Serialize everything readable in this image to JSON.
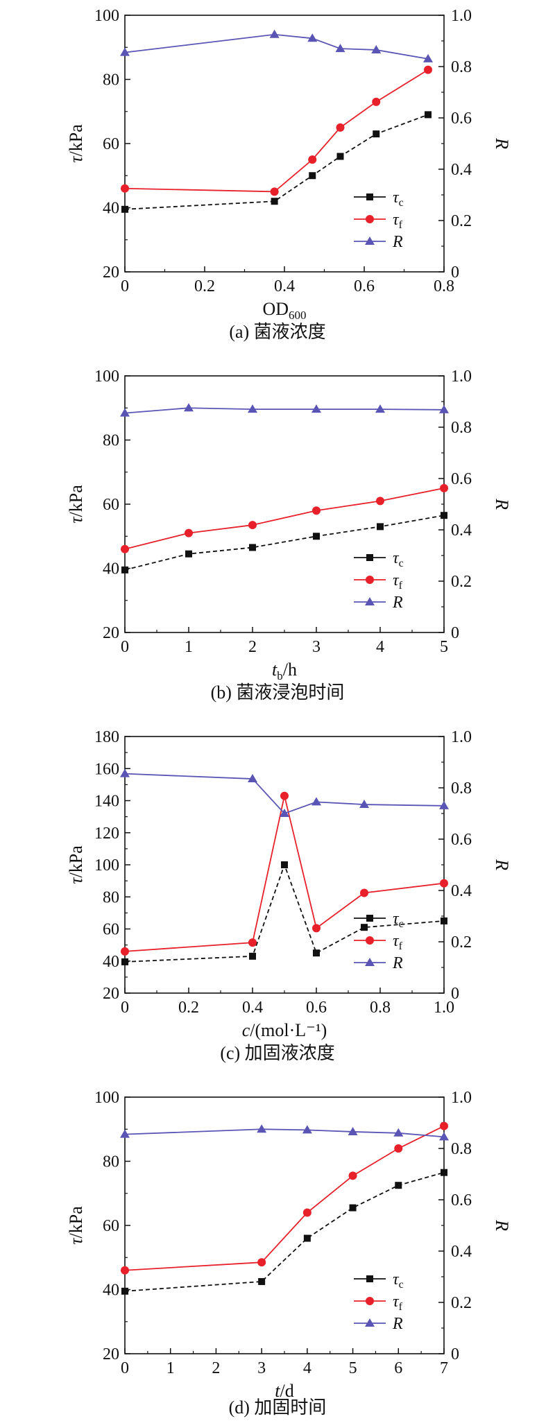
{
  "colors": {
    "tc": "#111111",
    "tf": "#e8202a",
    "R": "#5a55b4"
  },
  "legend_labels": {
    "tc_base": "τ",
    "tc_sub": "c",
    "tf_base": "τ",
    "tf_sub": "f",
    "R": "R"
  },
  "chart_data": [
    {
      "type": "line",
      "caption": "(a) 菌液浓度",
      "xlabel": {
        "base": "OD",
        "sub": "600",
        "rest": ""
      },
      "ylabel": "τ/kPa",
      "y2label": "R",
      "xlim": [
        0,
        0.8
      ],
      "xticks": [
        0,
        0.2,
        0.4,
        0.6,
        0.8
      ],
      "ylim": [
        20,
        100
      ],
      "yticks": [
        20,
        40,
        60,
        80,
        100
      ],
      "y2lim": [
        0,
        1.0
      ],
      "y2ticks": [
        0,
        0.2,
        0.4,
        0.6,
        0.8,
        1.0
      ],
      "legend_position": "bottom-right",
      "series": [
        {
          "key": "tc",
          "axis": "left",
          "marker": "square",
          "dashed": true,
          "x": [
            0,
            0.375,
            0.47,
            0.54,
            0.63,
            0.76
          ],
          "y": [
            39.5,
            42,
            50,
            56,
            63,
            69
          ]
        },
        {
          "key": "tf",
          "axis": "left",
          "marker": "circle",
          "dashed": false,
          "x": [
            0,
            0.375,
            0.47,
            0.54,
            0.63,
            0.76
          ],
          "y": [
            46,
            45,
            55,
            65,
            73,
            83
          ]
        },
        {
          "key": "R",
          "axis": "right",
          "marker": "triangle",
          "dashed": false,
          "x": [
            0,
            0.375,
            0.47,
            0.54,
            0.63,
            0.76
          ],
          "y": [
            0.855,
            0.925,
            0.91,
            0.87,
            0.865,
            0.83
          ]
        }
      ]
    },
    {
      "type": "line",
      "caption": "(b) 菌液浸泡时间",
      "xlabel": {
        "base": "t",
        "sub": "b",
        "rest": "/h"
      },
      "ylabel": "τ/kPa",
      "y2label": "R",
      "xlim": [
        0,
        5
      ],
      "xticks": [
        0,
        1,
        2,
        3,
        4,
        5
      ],
      "ylim": [
        20,
        100
      ],
      "yticks": [
        20,
        40,
        60,
        80,
        100
      ],
      "y2lim": [
        0,
        1.0
      ],
      "y2ticks": [
        0,
        0.2,
        0.4,
        0.6,
        0.8,
        1.0
      ],
      "legend_position": "bottom-right",
      "series": [
        {
          "key": "tc",
          "axis": "left",
          "marker": "square",
          "dashed": true,
          "x": [
            0,
            1,
            2,
            3,
            4,
            5
          ],
          "y": [
            39.5,
            44.5,
            46.5,
            50,
            53,
            56.5
          ]
        },
        {
          "key": "tf",
          "axis": "left",
          "marker": "circle",
          "dashed": false,
          "x": [
            0,
            1,
            2,
            3,
            4,
            5
          ],
          "y": [
            46,
            51,
            53.5,
            58,
            61,
            65
          ]
        },
        {
          "key": "R",
          "axis": "right",
          "marker": "triangle",
          "dashed": false,
          "x": [
            0,
            1,
            2,
            3,
            4,
            5
          ],
          "y": [
            0.855,
            0.875,
            0.87,
            0.87,
            0.87,
            0.868
          ]
        }
      ]
    },
    {
      "type": "line",
      "caption": "(c) 加固液浓度",
      "xlabel": {
        "base": "c",
        "sub": "",
        "rest": "/(mol·L⁻¹)"
      },
      "ylabel": "τ/kPa",
      "y2label": "R",
      "xlim": [
        0,
        1.0
      ],
      "xticks": [
        0,
        0.2,
        0.4,
        0.6,
        0.8,
        1.0
      ],
      "ylim": [
        20,
        180
      ],
      "yticks": [
        20,
        40,
        60,
        80,
        100,
        120,
        140,
        160,
        180
      ],
      "y2lim": [
        0,
        1.0
      ],
      "y2ticks": [
        0,
        0.2,
        0.4,
        0.6,
        0.8,
        1.0
      ],
      "legend_position": "bottom-right",
      "series": [
        {
          "key": "tc",
          "axis": "left",
          "marker": "square",
          "dashed": true,
          "x": [
            0,
            0.4,
            0.5,
            0.6,
            0.75,
            1.0
          ],
          "y": [
            39.5,
            43,
            100,
            45,
            61,
            65
          ]
        },
        {
          "key": "tf",
          "axis": "left",
          "marker": "circle",
          "dashed": false,
          "x": [
            0,
            0.4,
            0.5,
            0.6,
            0.75,
            1.0
          ],
          "y": [
            46,
            51.5,
            143,
            60.5,
            82.5,
            88.5
          ]
        },
        {
          "key": "R",
          "axis": "right",
          "marker": "triangle",
          "dashed": false,
          "x": [
            0,
            0.4,
            0.5,
            0.6,
            0.75,
            1.0
          ],
          "y": [
            0.855,
            0.835,
            0.7,
            0.745,
            0.735,
            0.73
          ]
        }
      ]
    },
    {
      "type": "line",
      "caption": "(d) 加固时间",
      "xlabel": {
        "base": "t",
        "sub": "",
        "rest": "/d"
      },
      "ylabel": "τ/kPa",
      "y2label": "R",
      "xlim": [
        0,
        7
      ],
      "xticks": [
        0,
        1,
        2,
        3,
        4,
        5,
        6,
        7
      ],
      "ylim": [
        20,
        100
      ],
      "yticks": [
        20,
        40,
        60,
        80,
        100
      ],
      "y2lim": [
        0,
        1.0
      ],
      "y2ticks": [
        0,
        0.2,
        0.4,
        0.6,
        0.8,
        1.0
      ],
      "legend_position": "bottom-right",
      "series": [
        {
          "key": "tc",
          "axis": "left",
          "marker": "square",
          "dashed": true,
          "x": [
            0,
            3,
            4,
            5,
            6,
            7
          ],
          "y": [
            39.5,
            42.5,
            56,
            65.5,
            72.5,
            76.5
          ]
        },
        {
          "key": "tf",
          "axis": "left",
          "marker": "circle",
          "dashed": false,
          "x": [
            0,
            3,
            4,
            5,
            6,
            7
          ],
          "y": [
            46,
            48.5,
            64,
            75.5,
            84,
            91
          ]
        },
        {
          "key": "R",
          "axis": "right",
          "marker": "triangle",
          "dashed": false,
          "x": [
            0,
            3,
            4,
            5,
            6,
            7
          ],
          "y": [
            0.855,
            0.875,
            0.872,
            0.865,
            0.86,
            0.845
          ]
        }
      ]
    }
  ]
}
